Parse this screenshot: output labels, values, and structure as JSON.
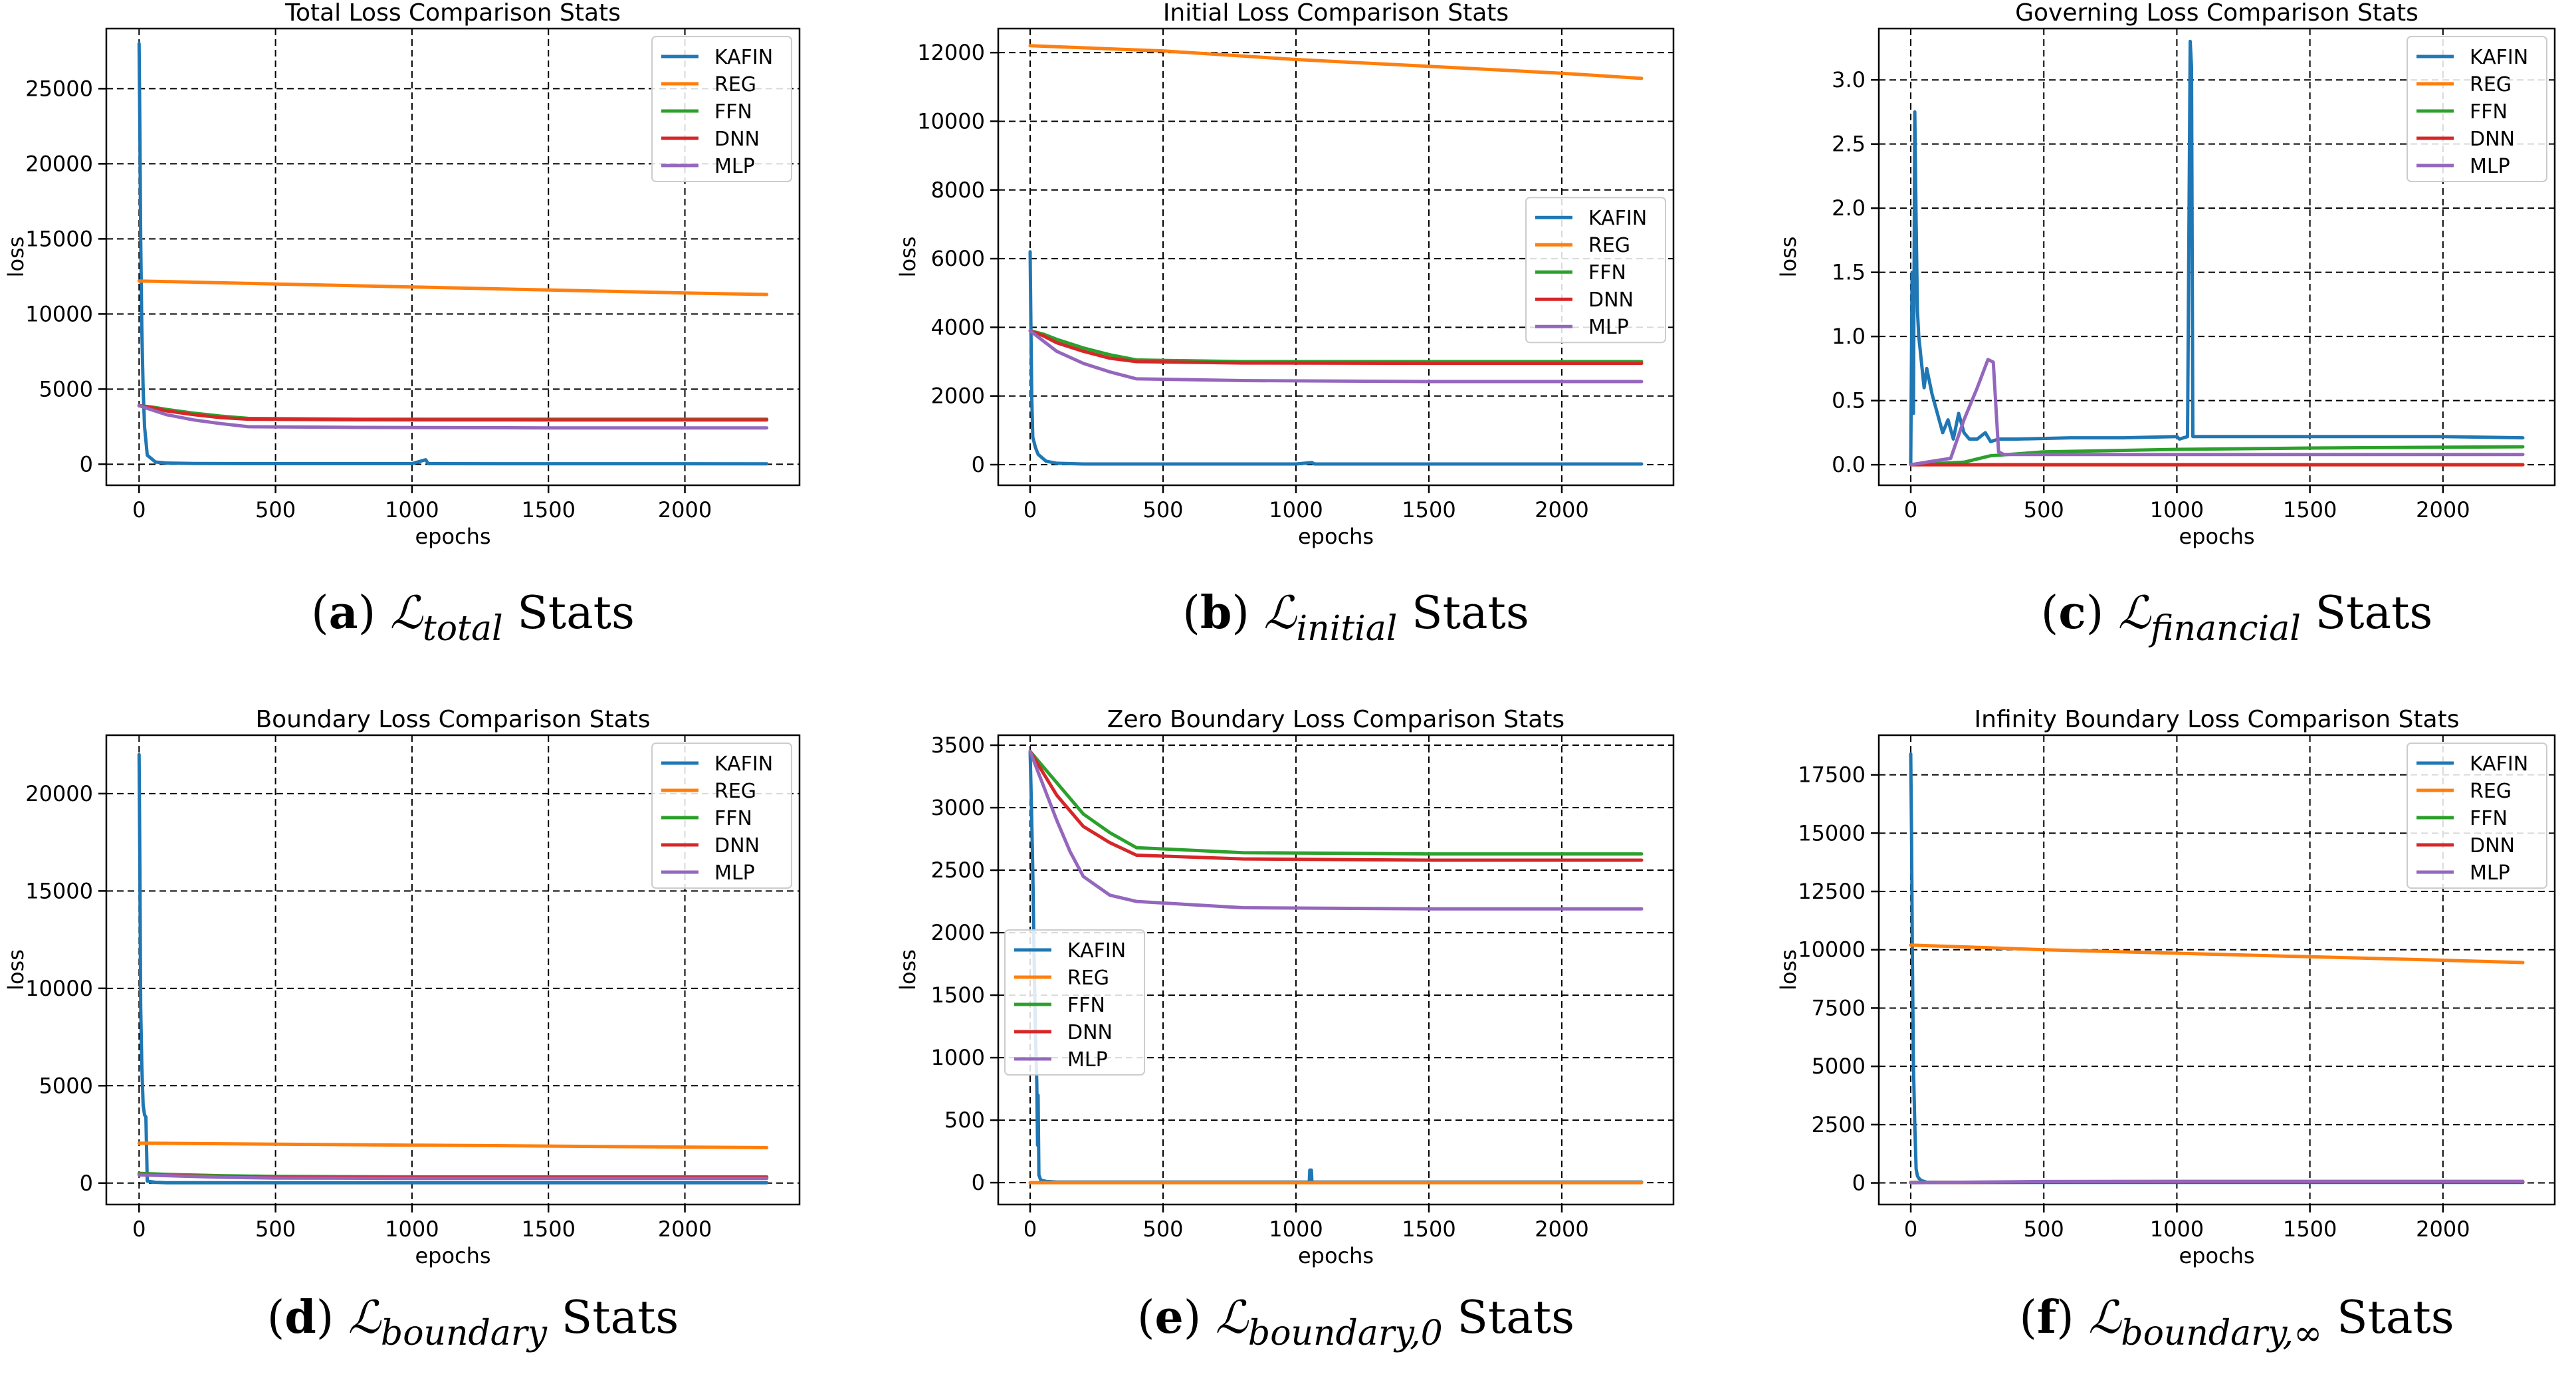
{
  "series_colors": {
    "KAFIN": "#1f77b4",
    "REG": "#ff7f0e",
    "FFN": "#2ca02c",
    "DNN": "#d62728",
    "MLP": "#9467bd"
  },
  "chart_data": [
    {
      "type": "line",
      "title": "Total Loss Comparison Stats",
      "xlabel": "epochs",
      "ylabel": "loss",
      "xlim": [
        -120,
        2420
      ],
      "ylim": [
        -1400,
        29000
      ],
      "xticks": [
        0,
        500,
        1000,
        1500,
        2000
      ],
      "yticks": [
        0,
        5000,
        10000,
        15000,
        20000,
        25000
      ],
      "ytick_labels": [
        "0",
        "5000",
        "10000",
        "15000",
        "20000",
        "25000"
      ],
      "grid": true,
      "legend_position": "top-right",
      "caption": {
        "letter": "a",
        "symbol": "ℒ",
        "subscript": "total",
        "suffix": "Stats"
      },
      "series": [
        {
          "name": "KAFIN",
          "x": [
            0,
            3,
            6,
            10,
            15,
            20,
            30,
            60,
            100,
            200,
            400,
            1000,
            1050,
            1060,
            1070,
            1500,
            2300
          ],
          "y": [
            28000,
            22000,
            15000,
            9000,
            5000,
            2500,
            600,
            150,
            80,
            50,
            40,
            40,
            300,
            40,
            40,
            35,
            30
          ]
        },
        {
          "name": "REG",
          "x": [
            0,
            500,
            1000,
            1500,
            2000,
            2300
          ],
          "y": [
            12200,
            12000,
            11800,
            11600,
            11400,
            11300
          ]
        },
        {
          "name": "FFN",
          "x": [
            0,
            50,
            100,
            200,
            300,
            400,
            800,
            1500,
            2300
          ],
          "y": [
            3900,
            3800,
            3650,
            3400,
            3200,
            3050,
            3000,
            3000,
            3000
          ]
        },
        {
          "name": "DNN",
          "x": [
            0,
            50,
            100,
            200,
            300,
            400,
            800,
            1500,
            2300
          ],
          "y": [
            3900,
            3750,
            3550,
            3300,
            3100,
            3000,
            2960,
            2950,
            2950
          ]
        },
        {
          "name": "MLP",
          "x": [
            0,
            50,
            100,
            200,
            300,
            400,
            800,
            1500,
            2300
          ],
          "y": [
            3900,
            3600,
            3300,
            2950,
            2700,
            2500,
            2450,
            2420,
            2420
          ]
        }
      ]
    },
    {
      "type": "line",
      "title": "Initial Loss Comparison Stats",
      "xlabel": "epochs",
      "ylabel": "loss",
      "xlim": [
        -120,
        2420
      ],
      "ylim": [
        -600,
        12700
      ],
      "xticks": [
        0,
        500,
        1000,
        1500,
        2000
      ],
      "yticks": [
        0,
        2000,
        4000,
        6000,
        8000,
        10000,
        12000
      ],
      "ytick_labels": [
        "0",
        "2000",
        "4000",
        "6000",
        "8000",
        "10000",
        "12000"
      ],
      "grid": true,
      "legend_position": "center-right",
      "caption": {
        "letter": "b",
        "symbol": "ℒ",
        "subscript": "initial",
        "suffix": "Stats"
      },
      "series": [
        {
          "name": "KAFIN",
          "x": [
            0,
            3,
            6,
            10,
            20,
            30,
            60,
            100,
            200,
            1000,
            1060,
            1070,
            2300
          ],
          "y": [
            6200,
            4000,
            2000,
            800,
            500,
            300,
            100,
            40,
            20,
            20,
            60,
            20,
            20
          ]
        },
        {
          "name": "REG",
          "x": [
            0,
            500,
            1000,
            1500,
            2000,
            2300
          ],
          "y": [
            12200,
            12050,
            11800,
            11600,
            11400,
            11250
          ]
        },
        {
          "name": "FFN",
          "x": [
            0,
            50,
            100,
            200,
            300,
            400,
            800,
            1500,
            2300
          ],
          "y": [
            3900,
            3800,
            3650,
            3400,
            3200,
            3050,
            3000,
            3000,
            3000
          ]
        },
        {
          "name": "DNN",
          "x": [
            0,
            50,
            100,
            200,
            300,
            400,
            800,
            1500,
            2300
          ],
          "y": [
            3900,
            3750,
            3550,
            3300,
            3100,
            3000,
            2960,
            2950,
            2950
          ]
        },
        {
          "name": "MLP",
          "x": [
            0,
            50,
            100,
            200,
            300,
            400,
            800,
            1500,
            2300
          ],
          "y": [
            3900,
            3600,
            3300,
            2950,
            2700,
            2500,
            2450,
            2420,
            2420
          ]
        }
      ]
    },
    {
      "type": "line",
      "title": "Governing Loss Comparison Stats",
      "xlabel": "epochs",
      "ylabel": "loss",
      "xlim": [
        -120,
        2420
      ],
      "ylim": [
        -0.16,
        3.4
      ],
      "xticks": [
        0,
        500,
        1000,
        1500,
        2000
      ],
      "yticks": [
        0,
        0.5,
        1.0,
        1.5,
        2.0,
        2.5,
        3.0
      ],
      "ytick_labels": [
        "0.0",
        "0.5",
        "1.0",
        "1.5",
        "2.0",
        "2.5",
        "3.0"
      ],
      "grid": true,
      "legend_position": "top-right",
      "caption": {
        "letter": "c",
        "symbol": "ℒ",
        "subscript": "financial",
        "suffix": "Stats"
      },
      "series": [
        {
          "name": "KAFIN",
          "x": [
            0,
            5,
            10,
            15,
            20,
            25,
            30,
            40,
            50,
            60,
            80,
            100,
            120,
            140,
            160,
            180,
            200,
            220,
            250,
            280,
            300,
            330,
            360,
            400,
            600,
            800,
            1000,
            1010,
            1040,
            1050,
            1055,
            1060,
            1070,
            1200,
            1500,
            2000,
            2300
          ],
          "y": [
            0,
            1.5,
            0.4,
            2.75,
            1.9,
            1.2,
            1.0,
            0.8,
            0.6,
            0.75,
            0.55,
            0.4,
            0.25,
            0.35,
            0.2,
            0.4,
            0.25,
            0.2,
            0.2,
            0.25,
            0.18,
            0.2,
            0.2,
            0.2,
            0.21,
            0.21,
            0.22,
            0.2,
            0.22,
            3.3,
            3.1,
            0.22,
            0.22,
            0.22,
            0.22,
            0.22,
            0.21
          ]
        },
        {
          "name": "REG",
          "x": [
            0,
            2300
          ],
          "y": [
            0.0,
            0.0
          ]
        },
        {
          "name": "FFN",
          "x": [
            0,
            200,
            300,
            500,
            1000,
            1500,
            2300
          ],
          "y": [
            0,
            0.02,
            0.07,
            0.1,
            0.12,
            0.13,
            0.14
          ]
        },
        {
          "name": "DNN",
          "x": [
            0,
            2300
          ],
          "y": [
            0.0,
            0.0
          ]
        },
        {
          "name": "MLP",
          "x": [
            0,
            150,
            200,
            250,
            290,
            310,
            330,
            350,
            600,
            1000,
            2300
          ],
          "y": [
            0,
            0.05,
            0.35,
            0.6,
            0.82,
            0.8,
            0.1,
            0.08,
            0.08,
            0.08,
            0.08
          ]
        }
      ]
    },
    {
      "type": "line",
      "title": "Boundary Loss Comparison Stats",
      "xlabel": "epochs",
      "ylabel": "loss",
      "xlim": [
        -120,
        2420
      ],
      "ylim": [
        -1100,
        23000
      ],
      "xticks": [
        0,
        500,
        1000,
        1500,
        2000
      ],
      "yticks": [
        0,
        5000,
        10000,
        15000,
        20000
      ],
      "ytick_labels": [
        "0",
        "5000",
        "10000",
        "15000",
        "20000"
      ],
      "grid": true,
      "legend_position": "top-right",
      "caption": {
        "letter": "d",
        "symbol": "ℒ",
        "subscript": "boundary",
        "suffix": "Stats"
      },
      "series": [
        {
          "name": "KAFIN",
          "x": [
            0,
            3,
            6,
            10,
            15,
            20,
            25,
            30,
            60,
            100,
            1000,
            2300
          ],
          "y": [
            22000,
            16000,
            9000,
            6000,
            4000,
            3500,
            3400,
            100,
            40,
            20,
            20,
            20
          ]
        },
        {
          "name": "REG",
          "x": [
            0,
            500,
            1000,
            1500,
            2000,
            2300
          ],
          "y": [
            2050,
            2000,
            1950,
            1900,
            1850,
            1820
          ]
        },
        {
          "name": "FFN",
          "x": [
            0,
            100,
            300,
            500,
            1000,
            2300
          ],
          "y": [
            500,
            450,
            380,
            340,
            320,
            320
          ]
        },
        {
          "name": "DNN",
          "x": [
            0,
            100,
            300,
            500,
            1000,
            2300
          ],
          "y": [
            450,
            400,
            330,
            300,
            280,
            280
          ]
        },
        {
          "name": "MLP",
          "x": [
            0,
            100,
            300,
            500,
            1000,
            2300
          ],
          "y": [
            420,
            380,
            300,
            260,
            240,
            240
          ]
        }
      ]
    },
    {
      "type": "line",
      "title": "Zero Boundary Loss Comparison Stats",
      "xlabel": "epochs",
      "ylabel": "loss",
      "xlim": [
        -120,
        2420
      ],
      "ylim": [
        -175,
        3580
      ],
      "xticks": [
        0,
        500,
        1000,
        1500,
        2000
      ],
      "yticks": [
        0,
        500,
        1000,
        1500,
        2000,
        2500,
        3000,
        3500
      ],
      "ytick_labels": [
        "0",
        "500",
        "1000",
        "1500",
        "2000",
        "2500",
        "3000",
        "3500"
      ],
      "grid": true,
      "legend_position": "center-left",
      "caption": {
        "letter": "e",
        "symbol": "ℒ",
        "subscript": "boundary,0",
        "suffix": "Stats"
      },
      "series": [
        {
          "name": "KAFIN",
          "x": [
            0,
            5,
            10,
            15,
            20,
            25,
            28,
            30,
            33,
            40,
            60,
            100,
            1000,
            1050,
            1052,
            1058,
            1060,
            1070,
            2300
          ],
          "y": [
            3450,
            3000,
            2500,
            1800,
            1200,
            800,
            300,
            700,
            60,
            20,
            10,
            5,
            5,
            5,
            100,
            100,
            5,
            5,
            5
          ]
        },
        {
          "name": "REG",
          "x": [
            0,
            2300
          ],
          "y": [
            0,
            0
          ]
        },
        {
          "name": "FFN",
          "x": [
            0,
            100,
            200,
            300,
            400,
            800,
            1500,
            2300
          ],
          "y": [
            3450,
            3200,
            2950,
            2800,
            2680,
            2640,
            2630,
            2630
          ]
        },
        {
          "name": "DNN",
          "x": [
            0,
            100,
            200,
            300,
            400,
            800,
            1500,
            2300
          ],
          "y": [
            3450,
            3100,
            2850,
            2720,
            2620,
            2590,
            2580,
            2580
          ]
        },
        {
          "name": "MLP",
          "x": [
            0,
            100,
            150,
            200,
            300,
            400,
            800,
            1500,
            2300
          ],
          "y": [
            3450,
            2900,
            2650,
            2450,
            2300,
            2250,
            2200,
            2190,
            2190
          ]
        }
      ]
    },
    {
      "type": "line",
      "title": "Infinity Boundary Loss Comparison Stats",
      "xlabel": "epochs",
      "ylabel": "loss",
      "xlim": [
        -120,
        2420
      ],
      "ylim": [
        -925,
        19200
      ],
      "xticks": [
        0,
        500,
        1000,
        1500,
        2000
      ],
      "yticks": [
        0,
        2500,
        5000,
        7500,
        10000,
        12500,
        15000,
        17500
      ],
      "ytick_labels": [
        "0",
        "2500",
        "5000",
        "7500",
        "10000",
        "12500",
        "15000",
        "17500"
      ],
      "grid": true,
      "legend_position": "top-right",
      "caption": {
        "letter": "f",
        "symbol": "ℒ",
        "subscript": "boundary,∞",
        "suffix": "Stats"
      },
      "series": [
        {
          "name": "KAFIN",
          "x": [
            0,
            3,
            6,
            10,
            15,
            20,
            25,
            30,
            40,
            60,
            100,
            2300
          ],
          "y": [
            18400,
            15000,
            10000,
            5000,
            2500,
            600,
            300,
            200,
            100,
            30,
            20,
            20
          ]
        },
        {
          "name": "REG",
          "x": [
            0,
            500,
            1000,
            1500,
            2000,
            2300
          ],
          "y": [
            10200,
            10000,
            9850,
            9700,
            9550,
            9450
          ]
        },
        {
          "name": "FFN",
          "x": [
            0,
            500,
            1000,
            2300
          ],
          "y": [
            20,
            40,
            50,
            50
          ]
        },
        {
          "name": "DNN",
          "x": [
            0,
            500,
            1000,
            2300
          ],
          "y": [
            15,
            30,
            35,
            35
          ]
        },
        {
          "name": "MLP",
          "x": [
            0,
            300,
            500,
            1000,
            2300
          ],
          "y": [
            10,
            40,
            60,
            70,
            70
          ]
        }
      ]
    }
  ]
}
